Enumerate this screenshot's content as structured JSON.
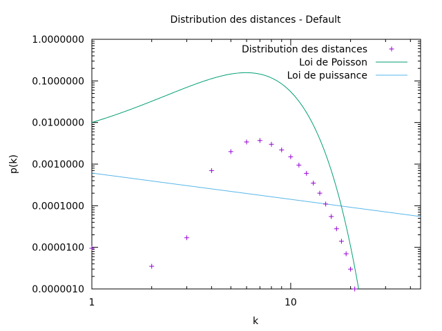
{
  "chart_data": {
    "type": "scatter",
    "title": "Distribution des distances - Default",
    "xlabel": "k",
    "ylabel": "p(k)",
    "xscale": "log",
    "yscale": "log",
    "xlim": [
      1,
      45
    ],
    "ylim": [
      1e-06,
      1
    ],
    "x_ticks": [
      {
        "value": 1,
        "label": "1"
      },
      {
        "value": 10,
        "label": "10"
      }
    ],
    "y_ticks": [
      {
        "value": 1e-06,
        "label": "0.0000010"
      },
      {
        "value": 1e-05,
        "label": "0.0000100"
      },
      {
        "value": 0.0001,
        "label": "0.0001000"
      },
      {
        "value": 0.001,
        "label": "0.0010000"
      },
      {
        "value": 0.01,
        "label": "0.0100000"
      },
      {
        "value": 0.1,
        "label": "0.1000000"
      },
      {
        "value": 1,
        "label": "1.0000000"
      }
    ],
    "grid": false,
    "legend_position": "top-right",
    "series": [
      {
        "name": "Distribution des distances",
        "type": "scatter",
        "marker": "+",
        "color": "#9400d3",
        "x": [
          1,
          2,
          3,
          4,
          5,
          6,
          7,
          8,
          9,
          10,
          11,
          12,
          13,
          14,
          15,
          16,
          17,
          18,
          19,
          20,
          21
        ],
        "y": [
          9.5e-06,
          3.5e-06,
          1.7e-05,
          0.0007,
          0.002,
          0.0034,
          0.0037,
          0.003,
          0.0022,
          0.0015,
          0.00095,
          0.0006,
          0.00035,
          0.0002,
          0.00011,
          5.5e-05,
          2.8e-05,
          1.4e-05,
          7e-06,
          3e-06,
          1e-06
        ]
      },
      {
        "name": "Loi de Poisson",
        "type": "line",
        "color": "#009e73",
        "lambda": 6.47
      },
      {
        "name": "Loi de puissance",
        "type": "line",
        "color": "#56b4e9",
        "x": [
          1,
          45
        ],
        "y": [
          0.00061,
          5.5e-05
        ]
      }
    ]
  }
}
